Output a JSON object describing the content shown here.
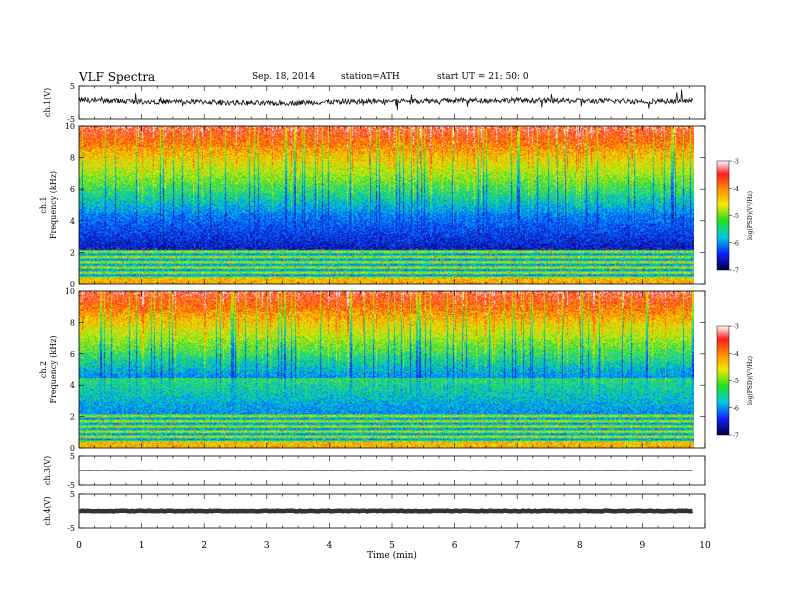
{
  "header": {
    "title": "VLF  Spectra",
    "date": "Sep. 18, 2014",
    "station": "station=ATH",
    "start": "start  UT  =    21: 50: 0"
  },
  "chart_data": [
    {
      "type": "line",
      "name": "ch1-waveform",
      "ylabel": "ch.1(V)",
      "ylim": [
        -5,
        5
      ],
      "yticks": [
        "5",
        "-5"
      ],
      "x": [
        0,
        1,
        2,
        3,
        4,
        5,
        6,
        7,
        8,
        9,
        9.8
      ],
      "values": [
        0.8,
        0.3,
        0.2,
        -0.3,
        0.2,
        0.5,
        0.6,
        0.7,
        0.5,
        0.4,
        0.5
      ]
    },
    {
      "type": "heatmap",
      "name": "ch1-spectrogram",
      "ylabel": "Frequency  (kHz)",
      "channel": "ch.1",
      "ylim": [
        0,
        10
      ],
      "yticks": [
        "0",
        "2",
        "4",
        "6",
        "8",
        "10"
      ],
      "colorbar": {
        "label": "log(PSD)(V²/Hz)",
        "range": [
          -7,
          -3
        ],
        "ticks": [
          "-3",
          "-4",
          "-5",
          "-6",
          "-7"
        ]
      },
      "values_description": "log PSD rising with frequency: dark blue near 3 kHz, green 5–6 kHz, yellow/red above 7 kHz"
    },
    {
      "type": "heatmap",
      "name": "ch2-spectrogram",
      "ylabel": "Frequency  (kHz)",
      "channel": "ch.2",
      "ylim": [
        0,
        10
      ],
      "yticks": [
        "0",
        "2",
        "4",
        "6",
        "8",
        "10"
      ],
      "colorbar": {
        "label": "log(PSD)(V²/Hz)",
        "range": [
          -7,
          -3
        ],
        "ticks": [
          "-3",
          "-4",
          "-5",
          "-6",
          "-7"
        ]
      }
    },
    {
      "type": "line",
      "name": "ch3-waveform",
      "ylabel": "ch.3(V)",
      "ylim": [
        -5,
        5
      ],
      "yticks": [
        "5",
        "-5"
      ],
      "x": [
        0,
        9.8
      ],
      "values": [
        0,
        0
      ]
    },
    {
      "type": "line",
      "name": "ch4-waveform",
      "ylabel": "ch.4(V)",
      "ylim": [
        -5,
        5
      ],
      "yticks": [
        "5",
        "-5"
      ],
      "x": [
        0,
        9.8
      ],
      "values": [
        0,
        0
      ]
    }
  ],
  "xaxis": {
    "label": "Time  (min)",
    "ticks": [
      "0",
      "1",
      "2",
      "3",
      "4",
      "5",
      "6",
      "7",
      "8",
      "9",
      "10"
    ],
    "xlim": [
      0,
      10
    ]
  }
}
